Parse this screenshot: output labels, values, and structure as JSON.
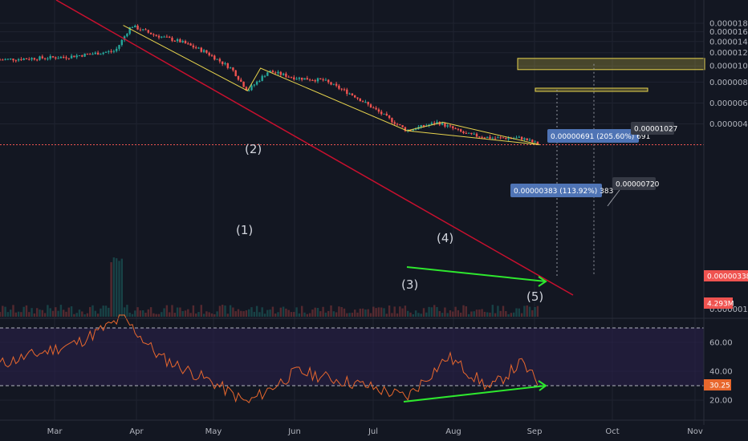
{
  "colors": {
    "background": "#131722",
    "grid": "#1f2330",
    "up": "#26a69a",
    "down": "#ef5350",
    "trendline": "#c8102e",
    "wave_line": "#e8d44d",
    "target_box": "#e8d44d",
    "divergence": "#2ee82e",
    "rsi": "#e8672d",
    "rsi_band": "#2a1f4a",
    "price_line": "#ef5350",
    "label_blue": "#4f74b5"
  },
  "x_axis": {
    "months": [
      "Mar",
      "Apr",
      "May",
      "Jun",
      "Jul",
      "Aug",
      "Sep",
      "Oct",
      "Nov"
    ]
  },
  "price_axis": {
    "ticks": [
      "0.00001800",
      "0.00001600",
      "0.00001400",
      "0.00001200",
      "0.00001000",
      "0.00000800",
      "0.00000600",
      "0.00000450",
      "0.00000338",
      "0.00000160"
    ],
    "current_price": "0.00000338",
    "volume_badge": "4.293M"
  },
  "rsi_axis": {
    "ticks": [
      "60.00",
      "40.00",
      "20.00"
    ],
    "current": "30.25"
  },
  "annotations": {
    "waves": [
      "(1)",
      "(2)",
      "(3)",
      "(4)",
      "(5)"
    ],
    "target2_measure": "0.00000691 (205.60%) 691",
    "target2_price": "0.00001027",
    "target1_measure": "0.00000383 (113.92%) 383",
    "target1_price": "0.00000720"
  },
  "chart_data": [
    {
      "type": "candlestick",
      "x_range": [
        "Feb",
        "Nov"
      ],
      "y_scale": "log",
      "y_range": [
        1.6e-06,
        1.9e-05
      ],
      "series": [
        {
          "x": [
            "2019-02-21",
            "2019-03-05",
            "2019-03-15",
            "2019-03-24",
            "2019-03-30",
            "2019-04-08",
            "2019-04-18",
            "2019-04-28",
            "2019-05-08",
            "2019-05-14",
            "2019-05-22",
            "2019-06-01",
            "2019-06-12",
            "2019-06-24",
            "2019-07-04",
            "2019-07-14",
            "2019-07-26",
            "2019-08-06",
            "2019-08-16",
            "2019-08-27",
            "2019-09-03"
          ],
          "values": [
            1.09e-05,
            1.13e-05,
            1.18e-05,
            1.23e-05,
            1.74e-05,
            1.53e-05,
            1.4e-05,
            1.21e-05,
            9.6e-06,
            7.1e-06,
            9.3e-06,
            8.5e-06,
            8.2e-06,
            6.6e-06,
            5.2e-06,
            4.1e-06,
            4.6e-06,
            3.9e-06,
            3.7e-06,
            3.7e-06,
            3.38e-06
          ]
        }
      ],
      "wave_points": [
        {
          "label": "(1)",
          "x": "2019-05-14",
          "y": 7.1e-06
        },
        {
          "label": "(2)",
          "x": "2019-05-19",
          "y": 9.7e-06
        },
        {
          "label": "(3)",
          "x": "2019-07-14",
          "y": 4.1e-06
        },
        {
          "label": "(4)",
          "x": "2019-07-28",
          "y": 4.6e-06
        },
        {
          "label": "(5)",
          "x": "2019-09-03",
          "y": 3.38e-06
        }
      ],
      "levels": [
        {
          "label": "0.00001027",
          "value": 1.027e-05
        },
        {
          "label": "0.00000720",
          "value": 7.2e-06
        },
        {
          "label": "0.00000338",
          "value": 3.38e-06
        }
      ]
    },
    {
      "type": "line",
      "ylabel": "",
      "y_range": [
        10,
        80
      ],
      "guides": [
        70,
        30
      ],
      "series": [
        {
          "x": [
            "2019-02-21",
            "2019-03-10",
            "2019-03-27",
            "2019-04-10",
            "2019-05-01",
            "2019-05-14",
            "2019-06-02",
            "2019-06-28",
            "2019-07-14",
            "2019-07-30",
            "2019-08-15",
            "2019-08-27",
            "2019-09-03"
          ],
          "values": [
            45,
            60,
            77,
            50,
            32,
            18,
            40,
            30,
            22,
            50,
            28,
            46,
            30.25
          ]
        }
      ]
    }
  ]
}
